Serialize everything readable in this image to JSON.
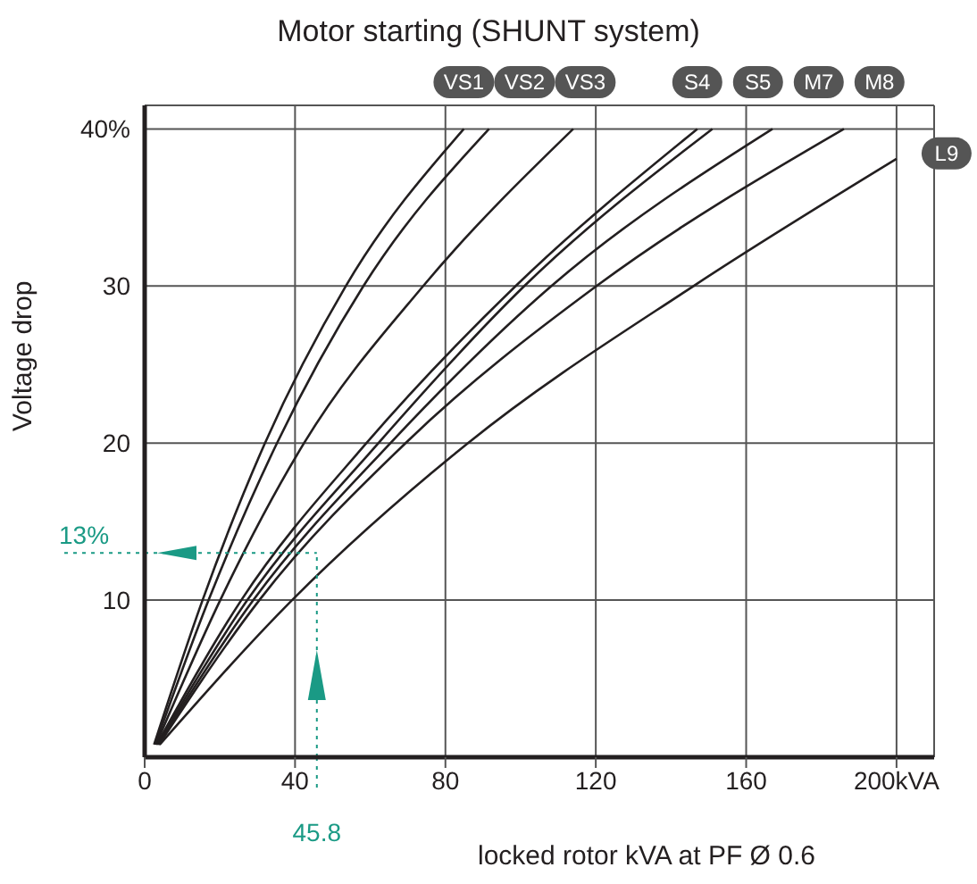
{
  "chart_data": {
    "type": "line",
    "title": "Motor starting (SHUNT system)",
    "xlabel": "locked rotor kVA at PF Ø 0.6",
    "ylabel": "Voltage drop",
    "xlim": [
      0,
      210
    ],
    "ylim": [
      0,
      41.5
    ],
    "xticks": [
      0,
      40,
      80,
      120,
      160,
      {
        "value": 200,
        "label": "200kVA"
      }
    ],
    "yticks": [
      10,
      20,
      30,
      {
        "value": 40,
        "label": "40%"
      }
    ],
    "grid": true,
    "marker": "none",
    "line_style": "solid",
    "series": [
      {
        "name": "VS1",
        "color": "#231f20",
        "x": [
          2.5,
          15.4,
          32,
          53.5,
          84.9
        ],
        "values": [
          0.8,
          10,
          20,
          30,
          40
        ]
      },
      {
        "name": "VS2",
        "color": "#231f20",
        "x": [
          2.8,
          17,
          35.2,
          58.2,
          91.6
        ],
        "values": [
          0.8,
          10,
          20,
          30,
          40
        ]
      },
      {
        "name": "VS3",
        "color": "#231f20",
        "x": [
          3,
          20.1,
          42.4,
          74.1,
          114
        ],
        "values": [
          0.8,
          10,
          20,
          30,
          40
        ]
      },
      {
        "name": "S4",
        "color": "#231f20",
        "x": [
          3.2,
          25.7,
          59,
          98.7,
          147
        ],
        "values": [
          0.8,
          10,
          20,
          30,
          40
        ]
      },
      {
        "name": "S5",
        "color": "#231f20",
        "x": [
          3.4,
          27.3,
          62.2,
          101,
          151
        ],
        "values": [
          0.8,
          10,
          20,
          30,
          40
        ]
      },
      {
        "name": "M7",
        "color": "#231f20",
        "x": [
          3.6,
          28.9,
          65.4,
          108.2,
          167
        ],
        "values": [
          0.8,
          10,
          20,
          30,
          40
        ]
      },
      {
        "name": "M8",
        "color": "#231f20",
        "x": [
          3.8,
          30.5,
          69.4,
          120.2,
          186
        ],
        "values": [
          0.8,
          10,
          20,
          30,
          40
        ]
      },
      {
        "name": "L9",
        "color": "#231f20",
        "x": [
          4,
          39.2,
          86,
          146,
          200
        ],
        "values": [
          0.8,
          10,
          20,
          30,
          38.1
        ]
      }
    ],
    "ref_lines": [
      {
        "axis": "y",
        "value": 13,
        "label": "13%",
        "color": "#1a9a85",
        "line_style": "dotted"
      },
      {
        "axis": "x",
        "value": 45.8,
        "label": "45.8",
        "color": "#1a9a85",
        "line_style": "dotted"
      }
    ]
  }
}
